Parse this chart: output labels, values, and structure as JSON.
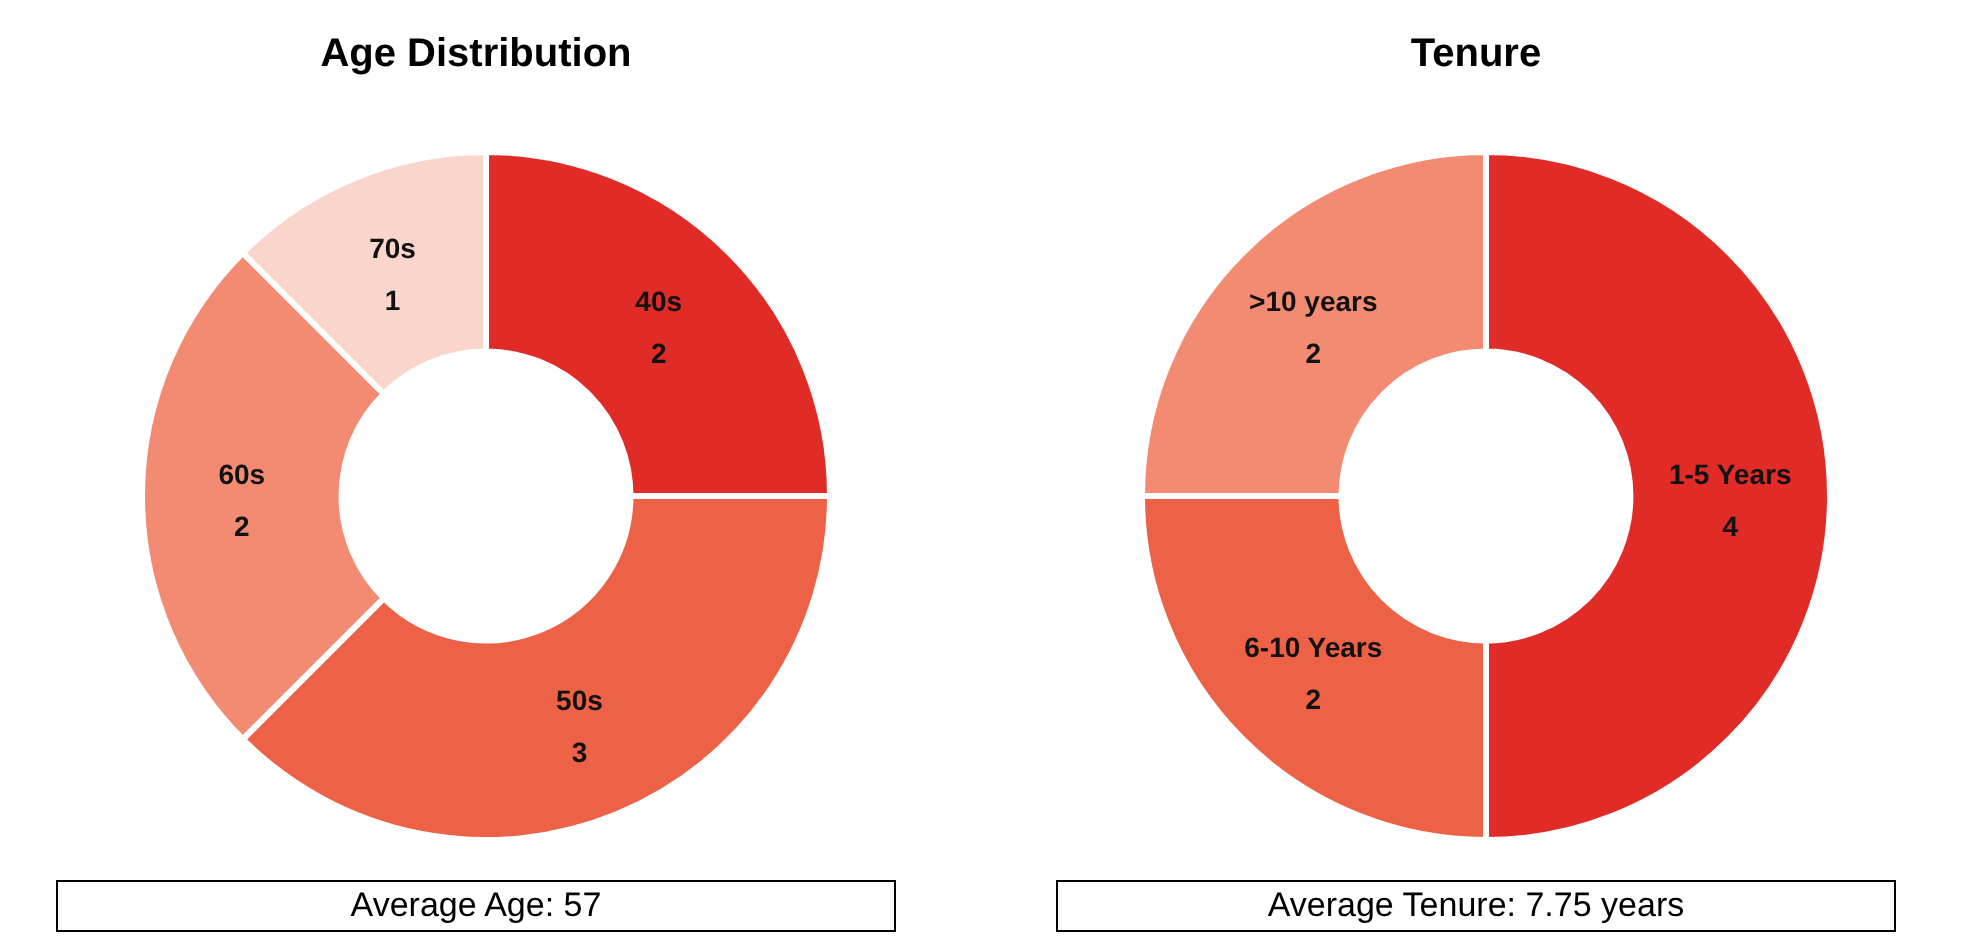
{
  "chart_data": [
    {
      "type": "donut",
      "title": "Age Distribution",
      "categories": [
        "40s",
        "50s",
        "60s",
        "70s"
      ],
      "values": [
        2,
        3,
        2,
        1
      ],
      "colors": [
        "#e02b27",
        "#ed6146",
        "#f28b72",
        "#fad5cb"
      ],
      "data_labels": true,
      "annotations": [
        "Average Age: 57"
      ]
    },
    {
      "type": "donut",
      "title": "Tenure",
      "categories": [
        "1-5 Years",
        "6-10 Years",
        ">10 years"
      ],
      "values": [
        4,
        2,
        2
      ],
      "colors": [
        "#e02b27",
        "#ed6146",
        "#f28b72"
      ],
      "data_labels": true,
      "annotations": [
        "Average Tenure: 7.75 years"
      ]
    }
  ]
}
